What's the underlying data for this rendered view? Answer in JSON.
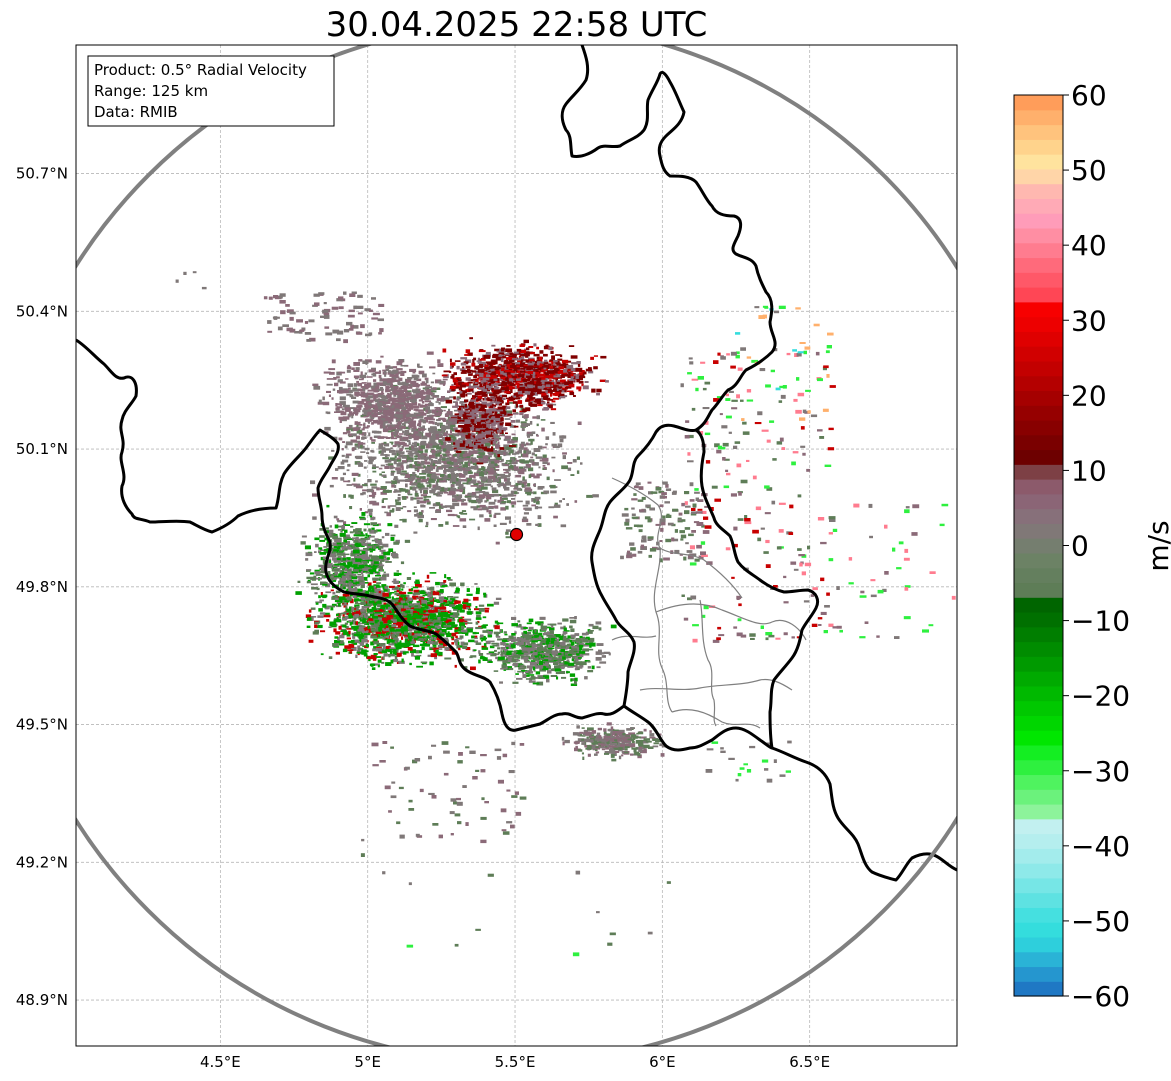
{
  "title": "30.04.2025 22:58 UTC",
  "info_box": {
    "product": "Product: 0.5° Radial Velocity",
    "range": "Range: 125 km",
    "data": "Data: RMIB"
  },
  "map_extent": {
    "lon": [
      4.01,
      7.0
    ],
    "lat": [
      48.8,
      50.98
    ]
  },
  "radar_site": {
    "lon": 5.505,
    "lat": 49.914
  },
  "lon_ticks": [
    {
      "value": 4.5,
      "label": "4.5°E"
    },
    {
      "value": 5.0,
      "label": "5°E"
    },
    {
      "value": 5.5,
      "label": "5.5°E"
    },
    {
      "value": 6.0,
      "label": "6°E"
    },
    {
      "value": 6.5,
      "label": "6.5°E"
    }
  ],
  "lat_ticks": [
    {
      "value": 50.7,
      "label": "50.7°N"
    },
    {
      "value": 50.4,
      "label": "50.4°N"
    },
    {
      "value": 50.1,
      "label": "50.1°N"
    },
    {
      "value": 49.8,
      "label": "49.8°N"
    },
    {
      "value": 49.5,
      "label": "49.5°N"
    },
    {
      "value": 49.2,
      "label": "49.2°N"
    },
    {
      "value": 48.9,
      "label": "48.9°N"
    }
  ],
  "colorbar": {
    "label": "m/s",
    "range": [
      -60,
      60
    ],
    "ticks": [
      {
        "value": 60,
        "label": "60"
      },
      {
        "value": 50,
        "label": "50"
      },
      {
        "value": 40,
        "label": "40"
      },
      {
        "value": 30,
        "label": "30"
      },
      {
        "value": 20,
        "label": "20"
      },
      {
        "value": 10,
        "label": "10"
      },
      {
        "value": 0,
        "label": "0"
      },
      {
        "value": -10,
        "label": "−10"
      },
      {
        "value": -20,
        "label": "−20"
      },
      {
        "value": -30,
        "label": "−30"
      },
      {
        "value": -40,
        "label": "−40"
      },
      {
        "value": -50,
        "label": "−50"
      },
      {
        "value": -60,
        "label": "−60"
      }
    ],
    "colors": [
      "#1f78c4",
      "#2596cf",
      "#2ab3d6",
      "#2ecfdc",
      "#34dddd",
      "#45e0e0",
      "#5ee2e2",
      "#76e6e6",
      "#8ee9e9",
      "#a3ecec",
      "#b5eeee",
      "#c2f0f0",
      "#8df39b",
      "#6bf27c",
      "#4ff35f",
      "#2ef03f",
      "#14ee22",
      "#00e600",
      "#00d600",
      "#00c800",
      "#00b900",
      "#00aa00",
      "#009a00",
      "#008c00",
      "#007e00",
      "#007000",
      "#006500",
      "#5e7d57",
      "#647f5e",
      "#6c8265",
      "#757e6f",
      "#807877",
      "#87707a",
      "#8b6576",
      "#8c5a6b",
      "#7d4045",
      "#6d0000",
      "#7a0000",
      "#880000",
      "#960000",
      "#a50000",
      "#b40000",
      "#c30000",
      "#d10000",
      "#df0000",
      "#ed0000",
      "#f70000",
      "#ff4655",
      "#ff5868",
      "#ff6a7b",
      "#ff7c8f",
      "#ff8ea3",
      "#ff9cb9",
      "#ffaab6",
      "#ffb8b0",
      "#ffd5a8",
      "#ffe39e",
      "#ffd38c",
      "#ffc37d",
      "#ffb06c",
      "#ff9d5a"
    ]
  },
  "color_groups": {
    "approach_green": "#00a000",
    "mid_green": "#5e7d57",
    "gray": "#7f7878",
    "mauve": "#8b6a78",
    "dark_red": "#800000",
    "red": "#c80000",
    "bright_green": "#2ef03f",
    "pink": "#ff7c8f",
    "cyan": "#34dddd",
    "orange": "#ffb06c"
  }
}
